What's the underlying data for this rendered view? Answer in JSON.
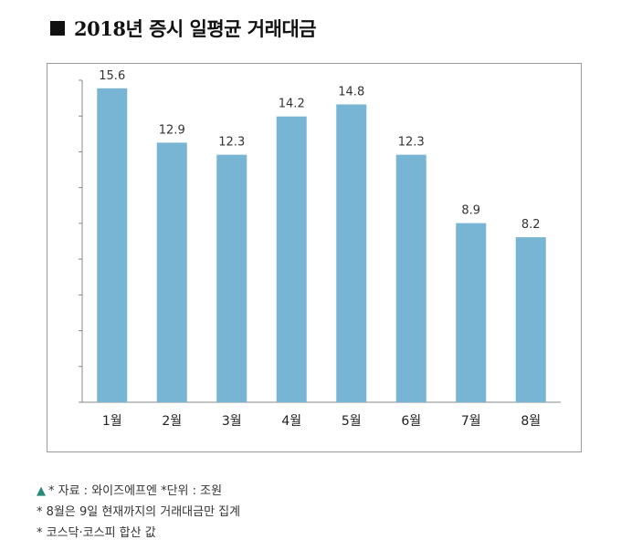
{
  "header": {
    "title": "2018년 증시 일평균 거래대금"
  },
  "chart_data": {
    "type": "bar",
    "title": "2018년 증시 일평균 거래대금",
    "categories": [
      "1월",
      "2월",
      "3월",
      "4월",
      "5월",
      "6월",
      "7월",
      "8월"
    ],
    "values": [
      15.6,
      12.9,
      12.3,
      14.2,
      14.8,
      12.3,
      8.9,
      8.2
    ],
    "value_labels": [
      "15.6",
      "12.9",
      "12.3",
      "14.2",
      "14.8",
      "12.3",
      "8.9",
      "8.2"
    ],
    "xlabel": "",
    "ylabel": "",
    "ylim": [
      0,
      16
    ],
    "y_ticks_unlabeled": 9,
    "grid": false,
    "bar_color": "#78b4d3",
    "axis_color": "#888888"
  },
  "notes": {
    "triangle": "▲",
    "line1": "* 자료 : 와이즈에프엔 *단위 : 조원",
    "line2": "* 8월은 9일 현재까지의 거래대금만 집계",
    "line3": "* 코스닥·코스피 합산 값"
  }
}
